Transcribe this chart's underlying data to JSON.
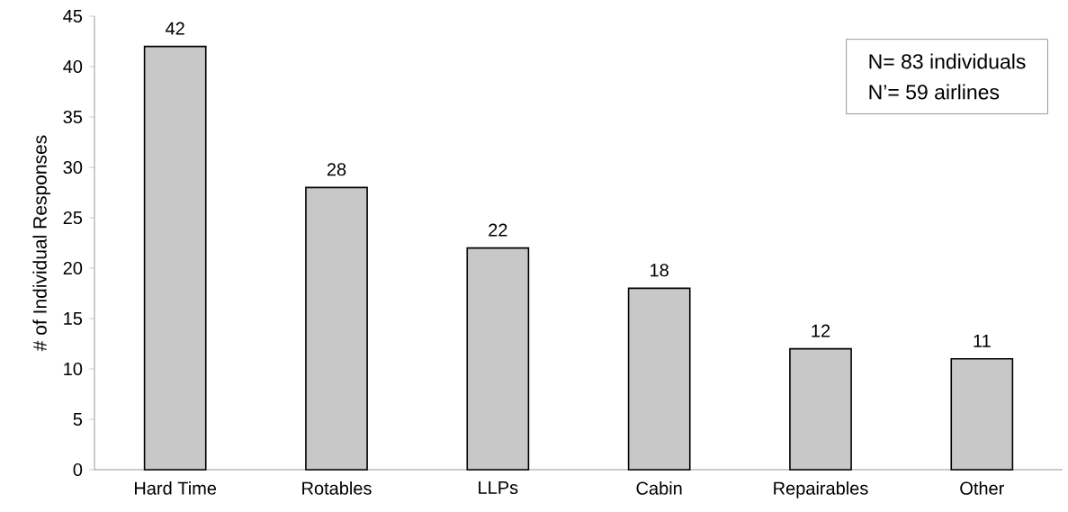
{
  "chart_data": {
    "type": "bar",
    "categories": [
      "Hard Time",
      "Rotables",
      "LLPs",
      "Cabin",
      "Repairables",
      "Other"
    ],
    "values": [
      42,
      28,
      22,
      18,
      12,
      11
    ],
    "color": "#c8c8c8",
    "ylabel": "# of Individual Responses",
    "ylim": [
      0,
      45
    ],
    "yticks": [
      0,
      5,
      10,
      15,
      20,
      25,
      30,
      35,
      40,
      45
    ],
    "data_labels": true,
    "annotations": [
      "N= 83 individuals",
      "N’= 59 airlines"
    ]
  }
}
